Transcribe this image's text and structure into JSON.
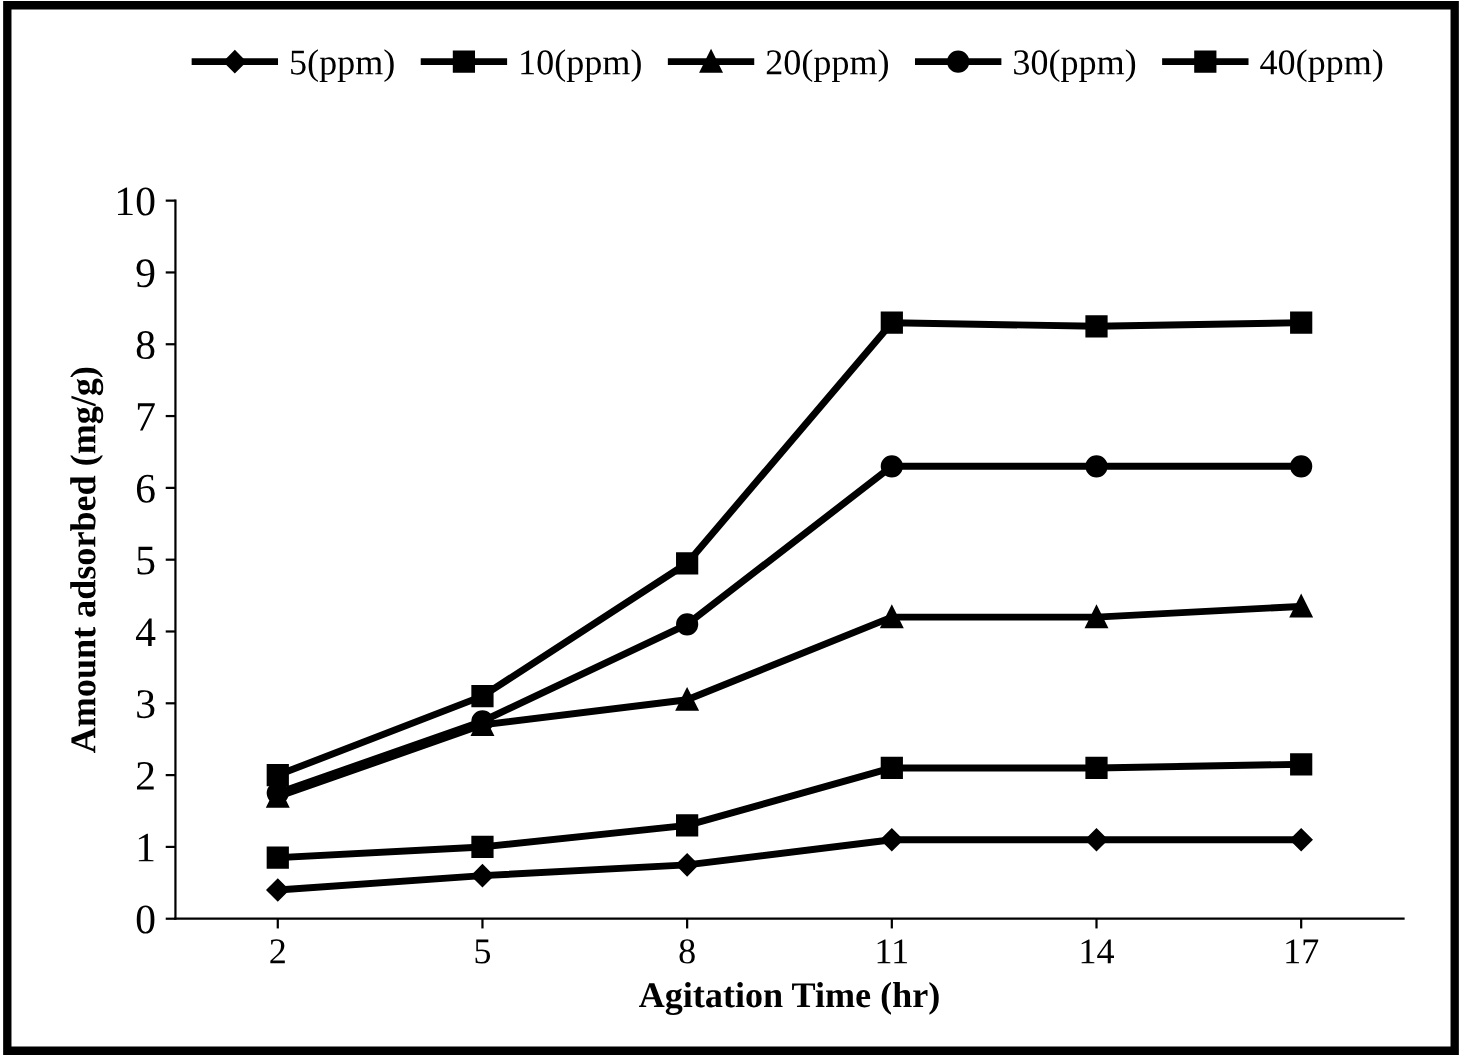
{
  "chart_data": {
    "type": "line",
    "xlabel": "Agitation Time (hr)",
    "ylabel": "Amount adsorbed (mg/g)",
    "categories": [
      "2",
      "5",
      "8",
      "11",
      "14",
      "17"
    ],
    "series": [
      {
        "name": "5(ppm)",
        "color": "#000000",
        "marker": "diamond",
        "values": [
          0.4,
          0.6,
          0.75,
          1.1,
          1.1,
          1.1
        ]
      },
      {
        "name": "10(ppm)",
        "color": "#000000",
        "marker": "square",
        "values": [
          0.85,
          1.0,
          1.3,
          2.1,
          2.1,
          2.15
        ]
      },
      {
        "name": "20(ppm)",
        "color": "#000000",
        "marker": "triangle",
        "values": [
          1.7,
          2.7,
          3.05,
          4.2,
          4.2,
          4.35
        ]
      },
      {
        "name": "30(ppm)",
        "color": "#000000",
        "marker": "circle",
        "values": [
          1.75,
          2.75,
          4.1,
          6.3,
          6.3,
          6.3
        ]
      },
      {
        "name": "40(ppm)",
        "color": "#000000",
        "marker": "square",
        "values": [
          2.0,
          3.1,
          4.95,
          8.3,
          8.25,
          8.3
        ]
      }
    ],
    "ylim": [
      0,
      10
    ],
    "yticks": [
      0,
      1,
      2,
      3,
      4,
      5,
      6,
      7,
      8,
      9,
      10
    ],
    "grid": false,
    "legend": "top",
    "line_style": "solid"
  }
}
